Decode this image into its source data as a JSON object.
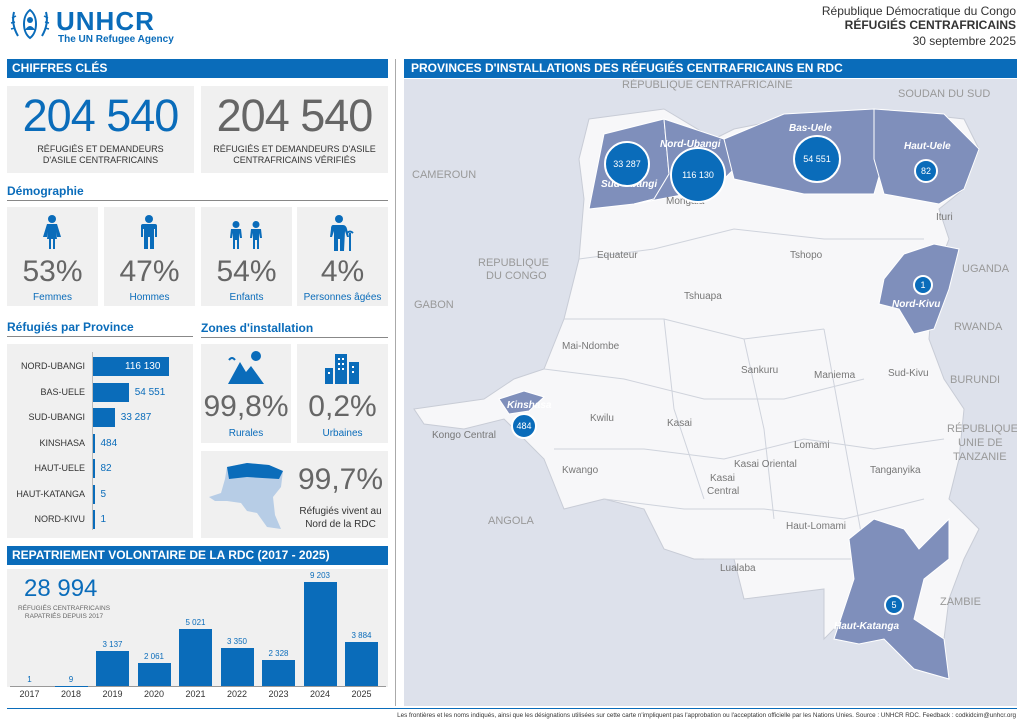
{
  "header": {
    "org": "UNHCR",
    "tagline": "The UN Refugee Agency",
    "country": "République Démocratique du Congo",
    "title": "RÉFUGIÉS CENTRAFRICAINS",
    "date": "30 septembre 2025"
  },
  "key_figures": {
    "section": "CHIFFRES CLÉS",
    "total": "204 540",
    "total_caption": "RÉFUGIÉS ET DEMANDEURS D'ASILE CENTRAFRICAINS",
    "verified": "204 540",
    "verified_caption": "RÉFUGIÉS ET DEMANDEURS D'ASILE CENTRAFRICAINS VÉRIFIÉS"
  },
  "demography": {
    "title": "Démographie",
    "items": [
      {
        "value": "53%",
        "label": "Femmes",
        "icon": "woman-icon"
      },
      {
        "value": "47%",
        "label": "Hommes",
        "icon": "man-icon"
      },
      {
        "value": "54%",
        "label": "Enfants",
        "icon": "children-icon"
      },
      {
        "value": "4%",
        "label": "Personnes âgées",
        "icon": "elderly-icon"
      }
    ]
  },
  "provinces": {
    "title": "Réfugiés par Province",
    "items": [
      {
        "name": "NORD-UBANGI",
        "value": 116130,
        "label": "116 130"
      },
      {
        "name": "BAS-UELE",
        "value": 54551,
        "label": "54 551"
      },
      {
        "name": "SUD-UBANGI",
        "value": 33287,
        "label": "33 287"
      },
      {
        "name": "KINSHASA",
        "value": 484,
        "label": "484"
      },
      {
        "name": "HAUT-UELE",
        "value": 82,
        "label": "82"
      },
      {
        "name": "HAUT-KATANGA",
        "value": 5,
        "label": "5"
      },
      {
        "name": "NORD-KIVU",
        "value": 1,
        "label": "1"
      }
    ]
  },
  "settlement": {
    "title": "Zones d'installation",
    "rural_value": "99,8%",
    "rural_label": "Rurales",
    "urban_value": "0,2%",
    "urban_label": "Urbaines",
    "north_value": "99,7%",
    "north_label": "Réfugiés vivent au Nord de la RDC"
  },
  "repatriation": {
    "title": "REPATRIEMENT VOLONTAIRE DE LA RDC (2017 - 2025)",
    "total": "28 994",
    "total_caption": "RÉFUGIÉS CENTRAFRICAINS RAPATRIÉS DEPUIS 2017"
  },
  "chart_data": {
    "type": "bar",
    "categories": [
      "2017",
      "2018",
      "2019",
      "2020",
      "2021",
      "2022",
      "2023",
      "2024",
      "2025"
    ],
    "values": [
      1,
      9,
      3137,
      2061,
      5021,
      3350,
      2328,
      9203,
      3884
    ],
    "labels": [
      "1",
      "9",
      "3 137",
      "2 061",
      "5 021",
      "3 350",
      "2 328",
      "9 203",
      "3 884"
    ],
    "title": "",
    "xlabel": "",
    "ylabel": ""
  },
  "map": {
    "title": "PROVINCES D'INSTALLATIONS DES RÉFUGIÉS CENTRAFRICAINS EN RDC",
    "countries": {
      "car": "RÉPUBLIQUE CENTRAFRICAINE",
      "sudan": "SOUDAN DU SUD",
      "cameroon": "CAMEROUN",
      "congo_l1": "REPUBLIQUE",
      "congo_l2": "DU CONGO",
      "gabon": "GABON",
      "uganda": "UGANDA",
      "rwanda": "RWANDA",
      "burundi": "BURUNDI",
      "tanzania_l1": "RÉPUBLIQUE",
      "tanzania_l2": "UNIE DE",
      "tanzania_l3": "TANZANIE",
      "angola": "ANGOLA",
      "zambia": "ZAMBIE"
    },
    "provinces": {
      "sud_ubangi": "Sud-Ubangi",
      "nord_ubangi": "Nord-Ubangi",
      "bas_uele": "Bas-Uele",
      "haut_uele": "Haut-Uele",
      "mongala": "Mongala",
      "ituri": "Ituri",
      "equateur": "Equateur",
      "tshopo": "Tshopo",
      "tshuapa": "Tshuapa",
      "nord_kivu": "Nord-Kivu",
      "mai_ndombe": "Mai-Ndombe",
      "sankuru": "Sankuru",
      "maniema": "Maniema",
      "sud_kivu": "Sud-Kivu",
      "kinshasa": "Kinshasa",
      "kwilu": "Kwilu",
      "kasai": "Kasai",
      "kongo_central": "Kongo Central",
      "lomami": "Lomami",
      "kasai_oriental": "Kasai Oriental",
      "kasai_central_l1": "Kasai",
      "kasai_central_l2": "Central",
      "kwango": "Kwango",
      "tanganyika": "Tanganyika",
      "haut_lomami": "Haut-Lomami",
      "lualaba": "Lualaba",
      "haut_katanga": "Haut-Katanga"
    },
    "bubbles": {
      "sud_ubangi": "33 287",
      "nord_ubangi": "116 130",
      "bas_uele": "54 551",
      "haut_uele": "82",
      "nord_kivu": "1",
      "kinshasa": "484",
      "haut_katanga": "5"
    }
  },
  "footer": "Les frontières et les noms indiqués, ainsi que les désignations utilisées sur cette carte n'impliquent pas l'approbation ou l'acceptation officielle par les Nations Unies. Source : UNHCR RDC. Feedback : codkidcim@unhcr.org",
  "colors": {
    "accent": "#0a6cba",
    "highlight_region": "#7f8fbb",
    "map_bg": "#d8dce8"
  }
}
